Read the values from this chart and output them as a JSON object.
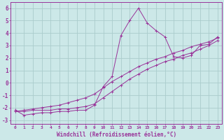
{
  "xlabel": "Windchill (Refroidissement éolien,°C)",
  "bg_color": "#cce8e8",
  "grid_color": "#aacccc",
  "line_color": "#993399",
  "x_values": [
    0,
    1,
    2,
    3,
    4,
    5,
    6,
    7,
    8,
    9,
    10,
    11,
    12,
    13,
    14,
    15,
    16,
    17,
    18,
    19,
    20,
    21,
    22,
    23
  ],
  "line1": [
    -2.2,
    -2.6,
    -2.5,
    -2.4,
    -2.4,
    -2.3,
    -2.3,
    -2.2,
    -2.2,
    -1.8,
    -0.3,
    0.5,
    3.8,
    5.0,
    6.0,
    4.8,
    4.2,
    3.7,
    2.1,
    2.0,
    2.2,
    3.0,
    3.1,
    3.7
  ],
  "line2": [
    -2.3,
    -2.3,
    -2.2,
    -2.2,
    -2.2,
    -2.1,
    -2.1,
    -2.0,
    -1.9,
    -1.7,
    -1.2,
    -0.7,
    -0.2,
    0.3,
    0.7,
    1.1,
    1.4,
    1.7,
    1.9,
    2.2,
    2.4,
    2.7,
    3.0,
    3.4
  ],
  "line3": [
    -2.3,
    -2.2,
    -2.1,
    -2.0,
    -1.9,
    -1.8,
    -1.6,
    -1.4,
    -1.2,
    -0.9,
    -0.4,
    0.1,
    0.5,
    0.9,
    1.3,
    1.6,
    1.9,
    2.1,
    2.4,
    2.6,
    2.9,
    3.1,
    3.3,
    3.6
  ],
  "ylim": [
    -3.3,
    6.5
  ],
  "xlim": [
    -0.5,
    23.5
  ],
  "yticks": [
    -3,
    -2,
    -1,
    0,
    1,
    2,
    3,
    4,
    5,
    6
  ],
  "xticks": [
    0,
    1,
    2,
    3,
    4,
    5,
    6,
    7,
    8,
    9,
    10,
    11,
    12,
    13,
    14,
    15,
    16,
    17,
    18,
    19,
    20,
    21,
    22,
    23
  ]
}
